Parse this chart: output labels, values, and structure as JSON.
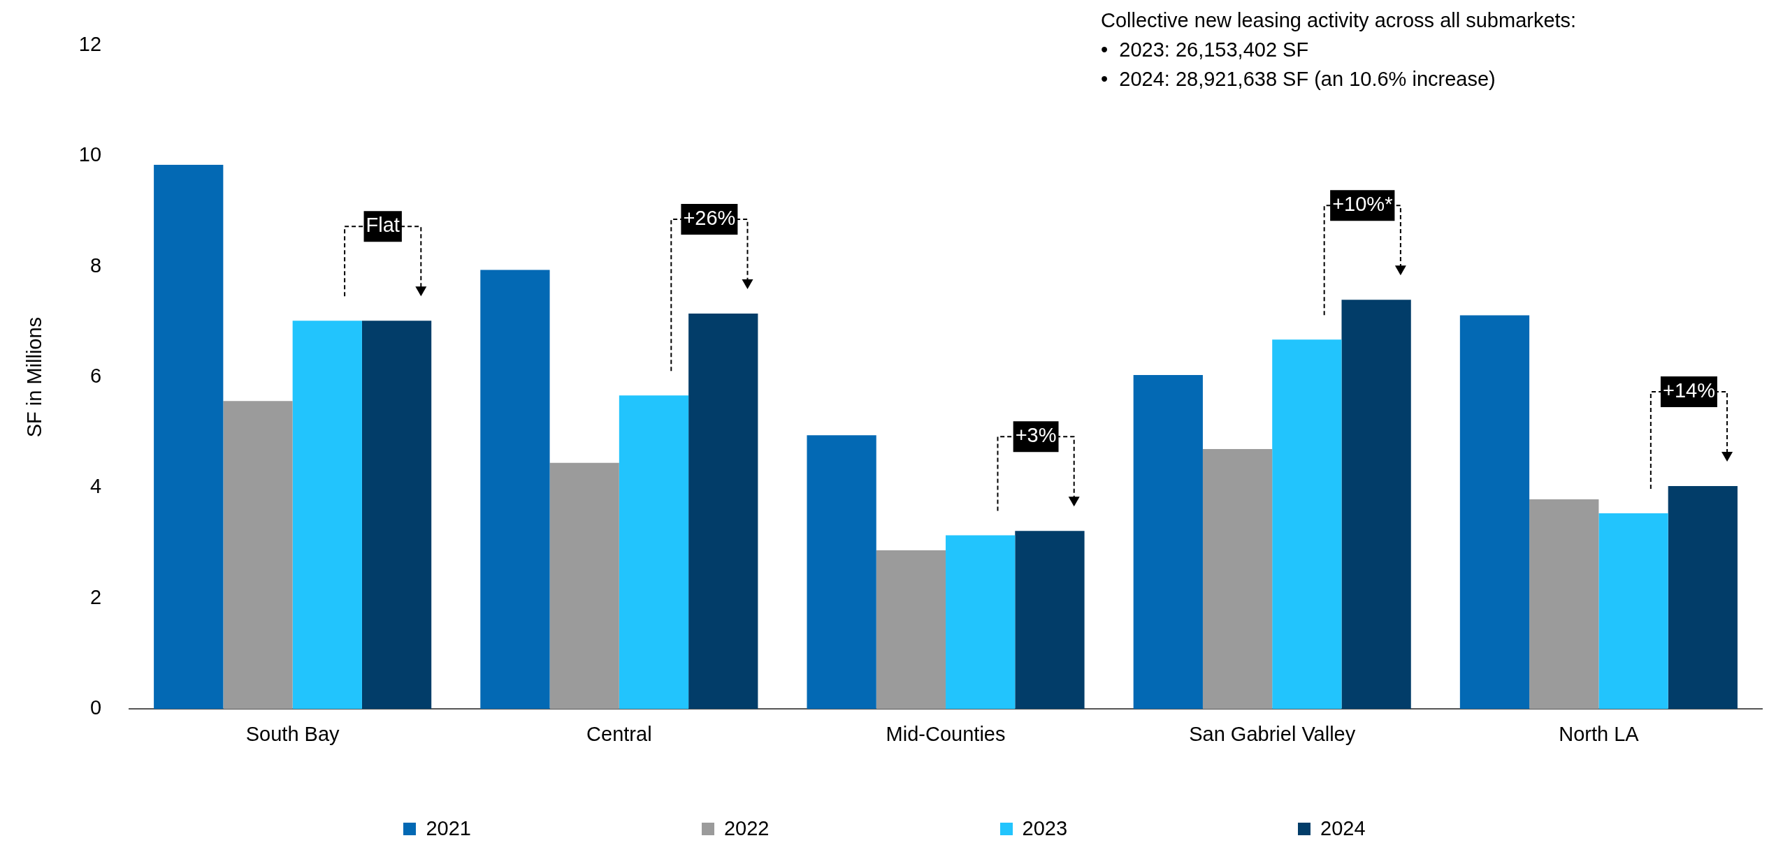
{
  "chart_data": {
    "type": "bar",
    "ylabel": "SF in Millions",
    "categories": [
      "South Bay",
      "Central",
      "Mid-Counties",
      "San Gabriel Valley",
      "North LA"
    ],
    "series": [
      {
        "name": "2021",
        "color": "#0369b4",
        "values": [
          9.84,
          7.94,
          4.95,
          6.04,
          7.12
        ]
      },
      {
        "name": "2022",
        "color": "#9b9b9b",
        "values": [
          5.57,
          4.45,
          2.87,
          4.7,
          3.79
        ]
      },
      {
        "name": "2023",
        "color": "#22c4fd",
        "values": [
          7.02,
          5.67,
          3.14,
          6.68,
          3.54
        ]
      },
      {
        "name": "2024",
        "color": "#023d69",
        "values": [
          7.02,
          7.15,
          3.22,
          7.4,
          4.03
        ]
      }
    ],
    "ylim": [
      0,
      12
    ],
    "yticks": [
      0,
      2,
      4,
      6,
      8,
      10,
      12
    ],
    "grid": false,
    "legend": "bottom",
    "annotations": [
      "Collective new leasing activity across all submarkets:",
      "•  2023: 26,153,402 SF",
      "•  2024: 28,921,638 SF (an 10.6% increase)",
      "Flat",
      "+26%",
      "+3%",
      "+10%*",
      "+14%"
    ]
  }
}
